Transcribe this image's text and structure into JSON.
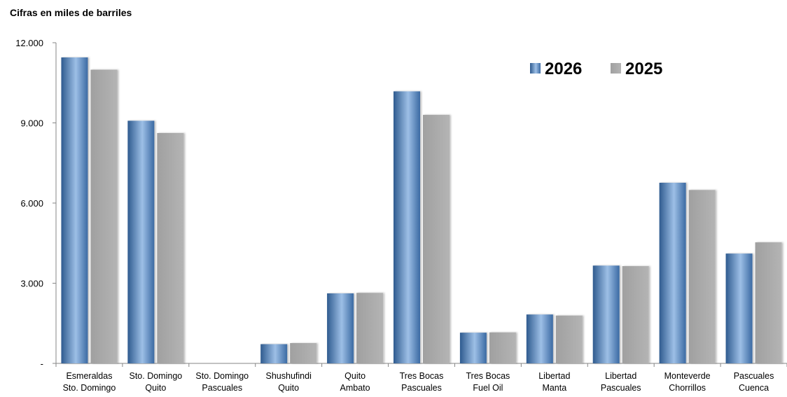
{
  "chart_data": {
    "type": "bar",
    "title": "Cifras en miles de barriles",
    "categories": [
      [
        "Esmeraldas",
        "Sto. Domingo"
      ],
      [
        "Sto. Domingo",
        "Quito"
      ],
      [
        "Sto. Domingo",
        "Pascuales"
      ],
      [
        "Shushufindi",
        "Quito"
      ],
      [
        "Quito",
        "Ambato"
      ],
      [
        "Tres Bocas",
        "Pascuales"
      ],
      [
        "Tres Bocas",
        "Fuel Oil"
      ],
      [
        "Libertad",
        "Manta"
      ],
      [
        "Libertad",
        "Pascuales"
      ],
      [
        "Monteverde",
        "Chorrillos"
      ],
      [
        "Pascuales",
        "Cuenca"
      ]
    ],
    "series": [
      {
        "name": "2026",
        "color": "#4f81bd",
        "values": [
          11450,
          9080,
          0,
          720,
          2620,
          10180,
          1150,
          1830,
          3660,
          6760,
          4110
        ]
      },
      {
        "name": "2025",
        "color": "#a6a6a6",
        "values": [
          10990,
          8620,
          0,
          760,
          2640,
          9300,
          1160,
          1790,
          3640,
          6490,
          4530
        ]
      }
    ],
    "ylim": [
      0,
      12000
    ],
    "yticks": [
      0,
      3000,
      6000,
      9000,
      12000
    ],
    "ytick_labels": [
      "-",
      "3.000",
      "6.000",
      "9.000",
      "12.000"
    ],
    "legend_position": "top-right",
    "grid": false
  }
}
